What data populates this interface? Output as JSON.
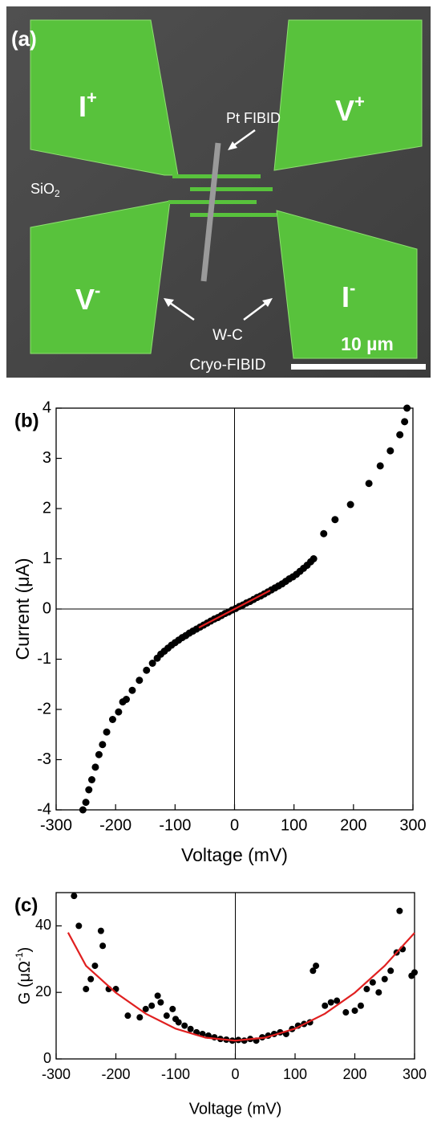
{
  "panel_a": {
    "label": "(a)",
    "pads": [
      {
        "name": "I",
        "sign": "+"
      },
      {
        "name": "V",
        "sign": "+"
      },
      {
        "name": "V",
        "sign": "-"
      },
      {
        "name": "I",
        "sign": "-"
      }
    ],
    "wire_label": "Pt FIBID",
    "substrate": "SiO",
    "substrate_sub": "2",
    "electrode_label": "W-C",
    "electrode_label_2": "Cryo-FIBID",
    "scale_bar": "10 µm"
  },
  "chart_data": [
    {
      "type": "scatter",
      "panel_label": "(b)",
      "x_label": "Voltage (mV)",
      "y_label": {
        "text": "Current (μA)"
      },
      "xlim": [
        -300,
        300
      ],
      "xticks": [
        -300,
        -200,
        -100,
        0,
        100,
        200,
        300
      ],
      "ylim": [
        -4,
        4
      ],
      "yticks": [
        -4,
        -3,
        -2,
        -1,
        0,
        1,
        2,
        3,
        4
      ],
      "vline_x": 0,
      "hline_y": 0,
      "points": {
        "color": "#000000",
        "x": [
          -255,
          -250,
          -245,
          -240,
          -234,
          -228,
          -222,
          -215,
          -205,
          -195,
          -188,
          -182,
          -172,
          -160,
          -148,
          -138,
          -130,
          -124,
          -118,
          -112,
          -106,
          -100,
          -94,
          -88,
          -82,
          -76,
          -70,
          -64,
          -58,
          -52,
          -46,
          -40,
          -34,
          -28,
          -22,
          -16,
          -10,
          -4,
          2,
          8,
          14,
          20,
          26,
          32,
          38,
          44,
          50,
          56,
          62,
          68,
          74,
          80,
          86,
          92,
          98,
          104,
          110,
          116,
          122,
          128,
          133,
          150,
          169,
          195,
          226,
          245,
          262,
          278,
          286,
          290
        ],
        "values": [
          -4.0,
          -3.85,
          -3.6,
          -3.4,
          -3.15,
          -2.9,
          -2.7,
          -2.45,
          -2.2,
          -2.05,
          -1.85,
          -1.8,
          -1.62,
          -1.42,
          -1.22,
          -1.08,
          -0.98,
          -0.9,
          -0.84,
          -0.78,
          -0.72,
          -0.67,
          -0.62,
          -0.57,
          -0.53,
          -0.48,
          -0.44,
          -0.4,
          -0.36,
          -0.32,
          -0.28,
          -0.24,
          -0.2,
          -0.17,
          -0.13,
          -0.09,
          -0.06,
          -0.02,
          0.01,
          0.05,
          0.08,
          0.12,
          0.15,
          0.19,
          0.23,
          0.26,
          0.3,
          0.34,
          0.38,
          0.42,
          0.46,
          0.5,
          0.55,
          0.6,
          0.64,
          0.69,
          0.75,
          0.81,
          0.87,
          0.94,
          1.0,
          1.5,
          1.78,
          2.08,
          2.5,
          2.85,
          3.15,
          3.47,
          3.73,
          4.0
        ]
      },
      "fit": {
        "color": "#e02020",
        "x": [
          -60,
          60
        ],
        "values": [
          -0.37,
          0.37
        ]
      }
    },
    {
      "type": "scatter",
      "panel_label": "(c)",
      "x_label": "Voltage (mV)",
      "y_label": {
        "text": "G (μΩ",
        "sup": "-1",
        "close": ")"
      },
      "xlim": [
        -300,
        300
      ],
      "xticks": [
        -300,
        -200,
        -100,
        0,
        100,
        200,
        300
      ],
      "ylim": [
        0,
        50
      ],
      "yticks": [
        0,
        20,
        40
      ],
      "vline_x": 0,
      "points": {
        "color": "#000000",
        "x": [
          -270,
          -262,
          -250,
          -242,
          -235,
          -225,
          -222,
          -212,
          -200,
          -180,
          -160,
          -150,
          -140,
          -130,
          -125,
          -115,
          -105,
          -100,
          -95,
          -85,
          -75,
          -65,
          -55,
          -45,
          -35,
          -25,
          -15,
          -5,
          5,
          15,
          25,
          35,
          45,
          55,
          65,
          75,
          85,
          95,
          105,
          115,
          125,
          130,
          135,
          150,
          160,
          170,
          185,
          200,
          210,
          220,
          230,
          240,
          250,
          260,
          270,
          275,
          280,
          295,
          300
        ],
        "values": [
          49,
          40,
          21,
          24,
          28,
          38.5,
          34,
          21,
          21,
          13,
          12.5,
          15,
          16,
          19,
          17,
          13,
          15,
          12,
          11,
          10,
          9,
          8,
          7.5,
          7,
          6.5,
          6,
          5.8,
          5.5,
          5.7,
          5.5,
          6,
          5.5,
          6.5,
          7,
          7.5,
          8,
          7.5,
          9,
          10,
          10.5,
          11,
          26.5,
          28,
          16,
          17,
          17.5,
          14,
          14.5,
          16,
          21,
          23,
          20,
          24,
          26.5,
          32,
          44.5,
          33,
          25,
          26
        ]
      },
      "fit": {
        "color": "#e02020",
        "x": [
          -280,
          -250,
          -200,
          -150,
          -100,
          -50,
          0,
          50,
          100,
          150,
          200,
          250,
          300
        ],
        "values": [
          38,
          28,
          19.9,
          13.6,
          9.1,
          6.4,
          5.5,
          6.4,
          9.1,
          13.6,
          19.9,
          28,
          37.9
        ]
      }
    }
  ]
}
